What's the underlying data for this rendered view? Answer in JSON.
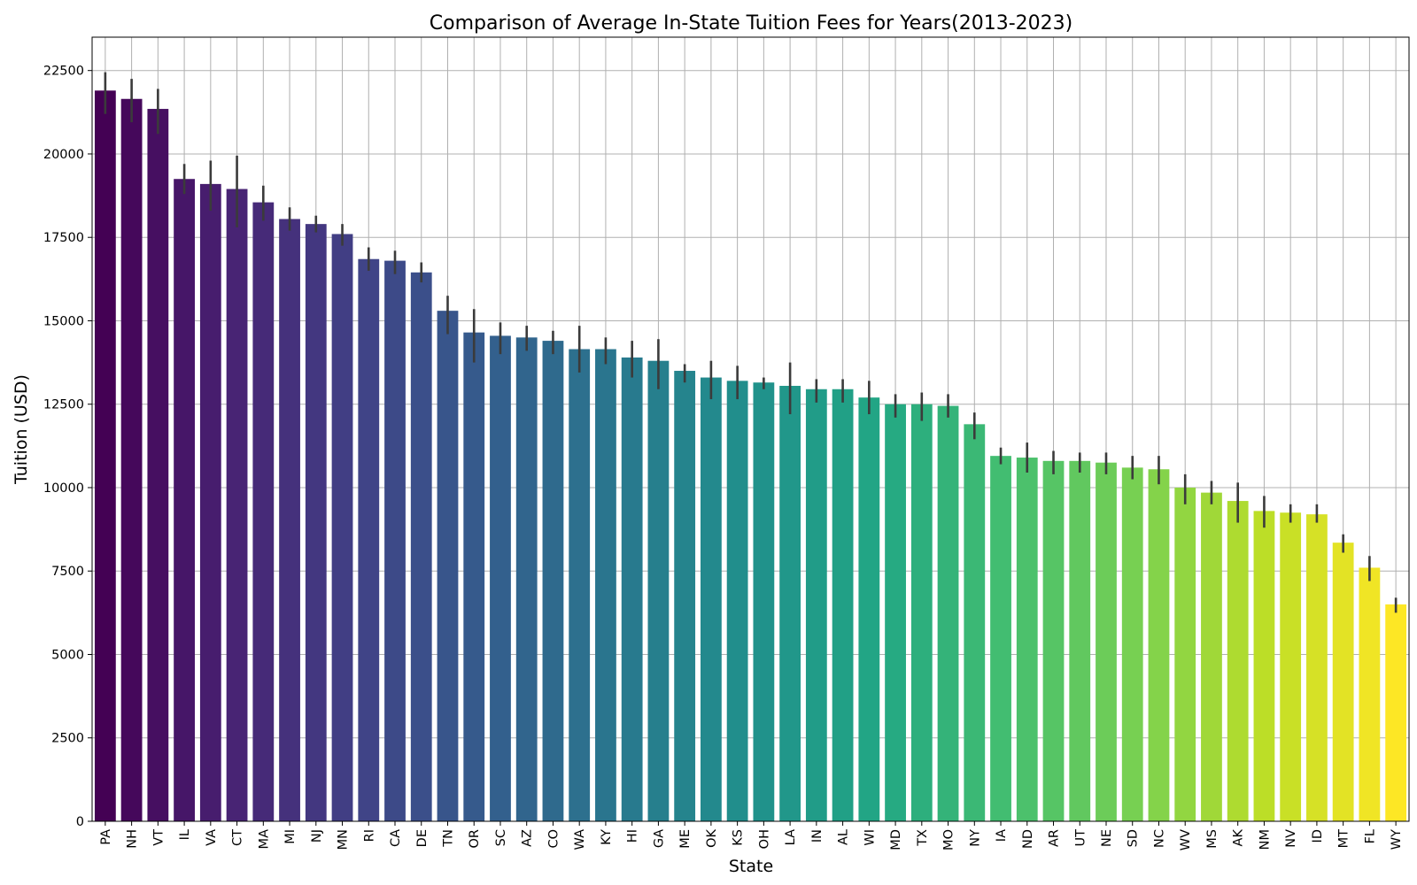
{
  "chart_data": {
    "type": "bar",
    "title": "Comparison of Average In-State Tuition Fees for Years(2013-2023)",
    "xlabel": "State",
    "ylabel": "Tuition (USD)",
    "ylim": [
      0,
      23500
    ],
    "yticks": [
      0,
      2500,
      5000,
      7500,
      10000,
      12500,
      15000,
      17500,
      20000,
      22500
    ],
    "grid": true,
    "colormap": "viridis",
    "categories": [
      "PA",
      "NH",
      "VT",
      "IL",
      "VA",
      "CT",
      "MA",
      "MI",
      "NJ",
      "MN",
      "RI",
      "CA",
      "DE",
      "TN",
      "OR",
      "SC",
      "AZ",
      "CO",
      "WA",
      "KY",
      "HI",
      "GA",
      "ME",
      "OK",
      "KS",
      "OH",
      "LA",
      "IN",
      "AL",
      "WI",
      "MD",
      "TX",
      "MO",
      "NY",
      "IA",
      "ND",
      "AR",
      "UT",
      "NE",
      "SD",
      "NC",
      "WV",
      "MS",
      "AK",
      "NM",
      "NV",
      "ID",
      "MT",
      "FL",
      "WY"
    ],
    "series": [
      {
        "values": [
          21900,
          21650,
          21350,
          19250,
          19100,
          18950,
          18550,
          18050,
          17900,
          17600,
          16850,
          16800,
          16450,
          15300,
          14650,
          14550,
          14500,
          14400,
          14150,
          14150,
          13900,
          13800,
          13500,
          13300,
          13200,
          13150,
          13050,
          12950,
          12950,
          12700,
          12500,
          12500,
          12450,
          11900,
          10950,
          10900,
          10800,
          10800,
          10750,
          10600,
          10550,
          10000,
          9850,
          9600,
          9300,
          9250,
          9200,
          8350,
          7600,
          6500
        ],
        "errors": [
          [
            21200,
            22450
          ],
          [
            20950,
            22250
          ],
          [
            20600,
            21950
          ],
          [
            18800,
            19700
          ],
          [
            18300,
            19800
          ],
          [
            17800,
            19950
          ],
          [
            18000,
            19050
          ],
          [
            17700,
            18400
          ],
          [
            17650,
            18150
          ],
          [
            17250,
            17900
          ],
          [
            16500,
            17200
          ],
          [
            16400,
            17100
          ],
          [
            16150,
            16750
          ],
          [
            14600,
            15750
          ],
          [
            13750,
            15350
          ],
          [
            14000,
            14950
          ],
          [
            14100,
            14850
          ],
          [
            14000,
            14700
          ],
          [
            13450,
            14850
          ],
          [
            13700,
            14500
          ],
          [
            13300,
            14400
          ],
          [
            12950,
            14450
          ],
          [
            13150,
            13700
          ],
          [
            12650,
            13800
          ],
          [
            12650,
            13650
          ],
          [
            12950,
            13300
          ],
          [
            12200,
            13750
          ],
          [
            12550,
            13250
          ],
          [
            12550,
            13250
          ],
          [
            12200,
            13200
          ],
          [
            12100,
            12800
          ],
          [
            12000,
            12850
          ],
          [
            12100,
            12800
          ],
          [
            11450,
            12250
          ],
          [
            10700,
            11200
          ],
          [
            10450,
            11350
          ],
          [
            10400,
            11100
          ],
          [
            10450,
            11050
          ],
          [
            10400,
            11050
          ],
          [
            10250,
            10950
          ],
          [
            10100,
            10950
          ],
          [
            9500,
            10400
          ],
          [
            9500,
            10200
          ],
          [
            8950,
            10150
          ],
          [
            8800,
            9750
          ],
          [
            8950,
            9500
          ],
          [
            8950,
            9500
          ],
          [
            8050,
            8600
          ],
          [
            7200,
            7950
          ],
          [
            6250,
            6700
          ]
        ]
      }
    ]
  }
}
